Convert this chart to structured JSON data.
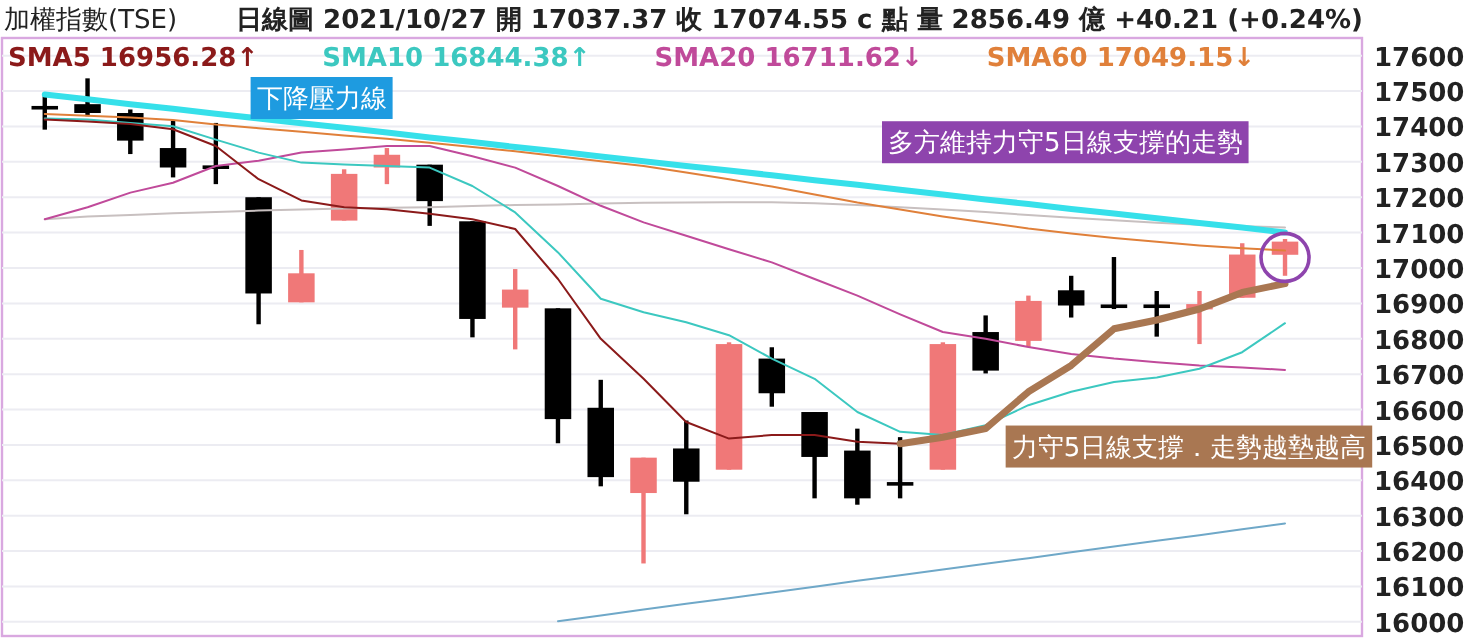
{
  "chart_data": {
    "type": "candlestick",
    "title": "加權指數(TSE)",
    "subtitle": "日線圖   2021/10/27   開 17037.37   收 17074.55 c 點   量 2856.49 億   +40.21 (+0.24%)",
    "categories": [
      null,
      null,
      null,
      null,
      null,
      null,
      null,
      null,
      null,
      null,
      null,
      null,
      null,
      null,
      null,
      null,
      null,
      null,
      null,
      null,
      null,
      null,
      null,
      null,
      null,
      null,
      null,
      null,
      null,
      null
    ],
    "ohlc": [
      [
        17458,
        17485,
        17391,
        17455
      ],
      [
        17463,
        17536,
        17429,
        17438
      ],
      [
        17438,
        17448,
        17322,
        17360
      ],
      [
        17339,
        17416,
        17256,
        17284
      ],
      [
        17290,
        17410,
        17237,
        17284
      ],
      [
        17200,
        17200,
        16841,
        16928
      ],
      [
        16903,
        17051,
        16903,
        16985
      ],
      [
        17134,
        17279,
        17134,
        17266
      ],
      [
        17284,
        17339,
        17237,
        17320
      ],
      [
        17292,
        17292,
        17119,
        17189
      ],
      [
        17132,
        17132,
        16804,
        16856
      ],
      [
        16888,
        16997,
        16770,
        16939
      ],
      [
        16886,
        16886,
        16505,
        16573
      ],
      [
        16605,
        16684,
        16383,
        16409
      ],
      [
        16364,
        16464,
        16165,
        16464
      ],
      [
        16490,
        16569,
        16304,
        16396
      ],
      [
        16430,
        16790,
        16430,
        16785
      ],
      [
        16744,
        16776,
        16608,
        16646
      ],
      [
        16593,
        16593,
        16349,
        16466
      ],
      [
        16484,
        16546,
        16331,
        16349
      ],
      [
        16395,
        16522,
        16349,
        16390
      ],
      [
        16430,
        16790,
        16430,
        16785
      ],
      [
        16819,
        16866,
        16702,
        16710
      ],
      [
        16794,
        16922,
        16777,
        16907
      ],
      [
        16937,
        16978,
        16860,
        16894
      ],
      [
        16897,
        17031,
        16884,
        16894
      ],
      [
        16897,
        16935,
        16806,
        16894
      ],
      [
        16883,
        16935,
        16785,
        16898
      ],
      [
        16916,
        17070,
        16916,
        17038
      ],
      [
        17037.37,
        17082,
        16978,
        17074.55
      ]
    ],
    "colors": [
      "#000000",
      "#000000",
      "#000000",
      "#000000",
      "#000000",
      "#000000",
      "#f07878",
      "#f07878",
      "#f07878",
      "#000000",
      "#000000",
      "#f07878",
      "#000000",
      "#000000",
      "#f07878",
      "#000000",
      "#f07878",
      "#000000",
      "#000000",
      "#000000",
      "#000000",
      "#f07878",
      "#000000",
      "#f07878",
      "#000000",
      "#000000",
      "#000000",
      "#f07878",
      "#f07878",
      "#f07878"
    ],
    "series": [
      {
        "type": "line",
        "color": "#c8c0c0",
        "values": [
          17138,
          17145,
          17150,
          17155,
          17158,
          17162,
          17165,
          17168,
          17170,
          17172,
          17175,
          17178,
          17180,
          17182,
          17184,
          17185,
          17186,
          17186,
          17183,
          17178,
          17172,
          17165,
          17158,
          17150,
          17142,
          17135,
          17128,
          17122,
          17118,
          17115
        ]
      },
      {
        "type": "line",
        "color": "#6fa8c8",
        "values": [
          null,
          null,
          null,
          null,
          null,
          null,
          null,
          null,
          null,
          null,
          null,
          null,
          16002,
          16018,
          16035,
          16051,
          16067,
          16083,
          16099,
          16116,
          16132,
          16148,
          16164,
          16180,
          16197,
          16213,
          16229,
          16245,
          16262,
          16278
        ]
      },
      {
        "type": "line",
        "name": "SMA60 17049.15↓",
        "color": "#e0803a",
        "values": [
          17435,
          17430,
          17425,
          17418,
          17405,
          17395,
          17385,
          17375,
          17365,
          17354,
          17342,
          17330,
          17316,
          17302,
          17288,
          17270,
          17251,
          17230,
          17208,
          17185,
          17165,
          17146,
          17129,
          17112,
          17098,
          17085,
          17074,
          17064,
          17056,
          17049
        ]
      },
      {
        "type": "line",
        "name": "SMA20 16711.62↓",
        "color": "#c04a9a",
        "values": [
          17138,
          17172,
          17213,
          17241,
          17288,
          17303,
          17326,
          17335,
          17345,
          17345,
          17316,
          17284,
          17232,
          17176,
          17129,
          17091,
          17053,
          17016,
          16969,
          16922,
          16869,
          16819,
          16800,
          16777,
          16757,
          16744,
          16734,
          16725,
          16719,
          16712
        ]
      },
      {
        "type": "line",
        "name": "SMA10 16844.38↑",
        "color": "#3cc8c0",
        "values": [
          17423,
          17420,
          17410,
          17401,
          17363,
          17326,
          17298,
          17292,
          17288,
          17284,
          17232,
          17157,
          17044,
          16913,
          16875,
          16847,
          16810,
          16744,
          16687,
          16593,
          16537,
          16528,
          16556,
          16612,
          16650,
          16678,
          16691,
          16715,
          16762,
          16844
        ]
      },
      {
        "type": "line",
        "name": "SMA5 16956.28↑",
        "color": "#8b1a1a",
        "values": [
          17420,
          17414,
          17407,
          17392,
          17345,
          17251,
          17191,
          17172,
          17166,
          17153,
          17138,
          17110,
          16969,
          16800,
          16687,
          16565,
          16518,
          16528,
          16528,
          16509,
          16503,
          16522,
          16546,
          16650,
          16725,
          16828,
          16853,
          16884,
          16931,
          16956
        ]
      },
      {
        "type": "line",
        "color": "#a97752",
        "values": [
          null,
          null,
          null,
          null,
          null,
          null,
          null,
          null,
          null,
          null,
          null,
          null,
          null,
          null,
          null,
          null,
          null,
          null,
          null,
          null,
          16503,
          16522,
          16546,
          16650,
          16725,
          16828,
          16853,
          16884,
          16931,
          16956
        ]
      },
      {
        "type": "line",
        "color": "#36e0ea",
        "values": [
          17490,
          17477,
          17463,
          17450,
          17436,
          17423,
          17409,
          17396,
          17383,
          17369,
          17356,
          17342,
          17329,
          17315,
          17302,
          17288,
          17275,
          17262,
          17248,
          17235,
          17221,
          17208,
          17194,
          17181,
          17167,
          17154,
          17141,
          17127,
          17114,
          17100
        ]
      }
    ],
    "annotations": [
      "下降壓力線",
      "多方維持力守5日線支撐的走勢",
      "力守5日線支撐．走勢越墊越高"
    ],
    "ylim": [
      15960,
      17650
    ],
    "yticks": [
      16000,
      16100,
      16200,
      16300,
      16400,
      16500,
      16600,
      16700,
      16800,
      16900,
      17000,
      17100,
      17200,
      17300,
      17400,
      17500,
      17600
    ],
    "tick_labels": "y",
    "grid": "y",
    "legend": "top left"
  }
}
